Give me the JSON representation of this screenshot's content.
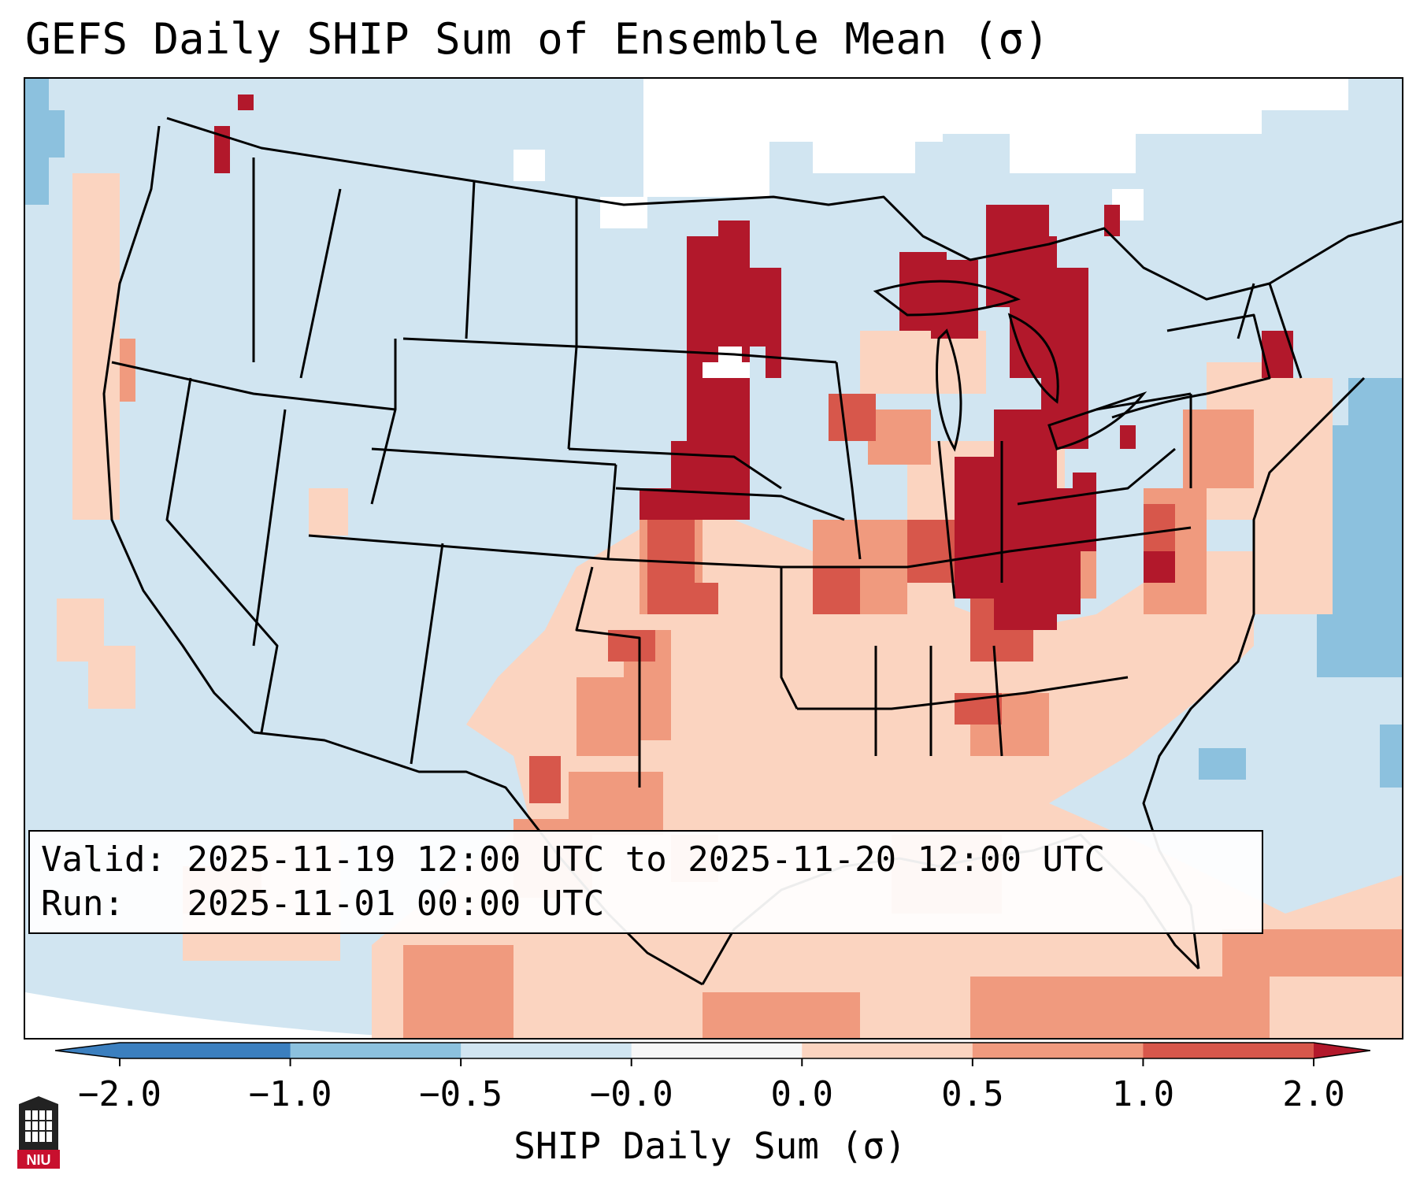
{
  "title": "GEFS Daily SHIP Sum of Ensemble Mean (σ)",
  "info": {
    "valid_label": "Valid:",
    "valid_value": "2025-11-19 12:00 UTC to 2025-11-20 12:00 UTC",
    "run_label": "Run:",
    "run_value": "2025-11-01 00:00 UTC"
  },
  "colorbar": {
    "label": "SHIP Daily Sum (σ)",
    "ticks": [
      "−2.0",
      "−1.0",
      "−0.5",
      "−0.0",
      "0.0",
      "0.5",
      "1.0",
      "2.0"
    ],
    "colors": [
      "#3b7fbf",
      "#8cc1de",
      "#d1e5f1",
      "#f7f7f7",
      "#fbd4c0",
      "#f09a7e",
      "#d7574b",
      "#b2182b"
    ],
    "extend": "both"
  },
  "legend_colors": {
    "below_minus_0_5": "#d1e5f1",
    "minus_0_5_to_0": "#ffffff",
    "zero_to_0_5": "#fbd4c0",
    "0_5_to_1_0": "#f09a7e",
    "1_0_to_2_0": "#d7574b",
    "above_2_0": "#b2182b"
  },
  "logo": {
    "text": "NIU",
    "color": "#c8102e"
  },
  "icons": {
    "logo": "niu-logo-icon"
  }
}
